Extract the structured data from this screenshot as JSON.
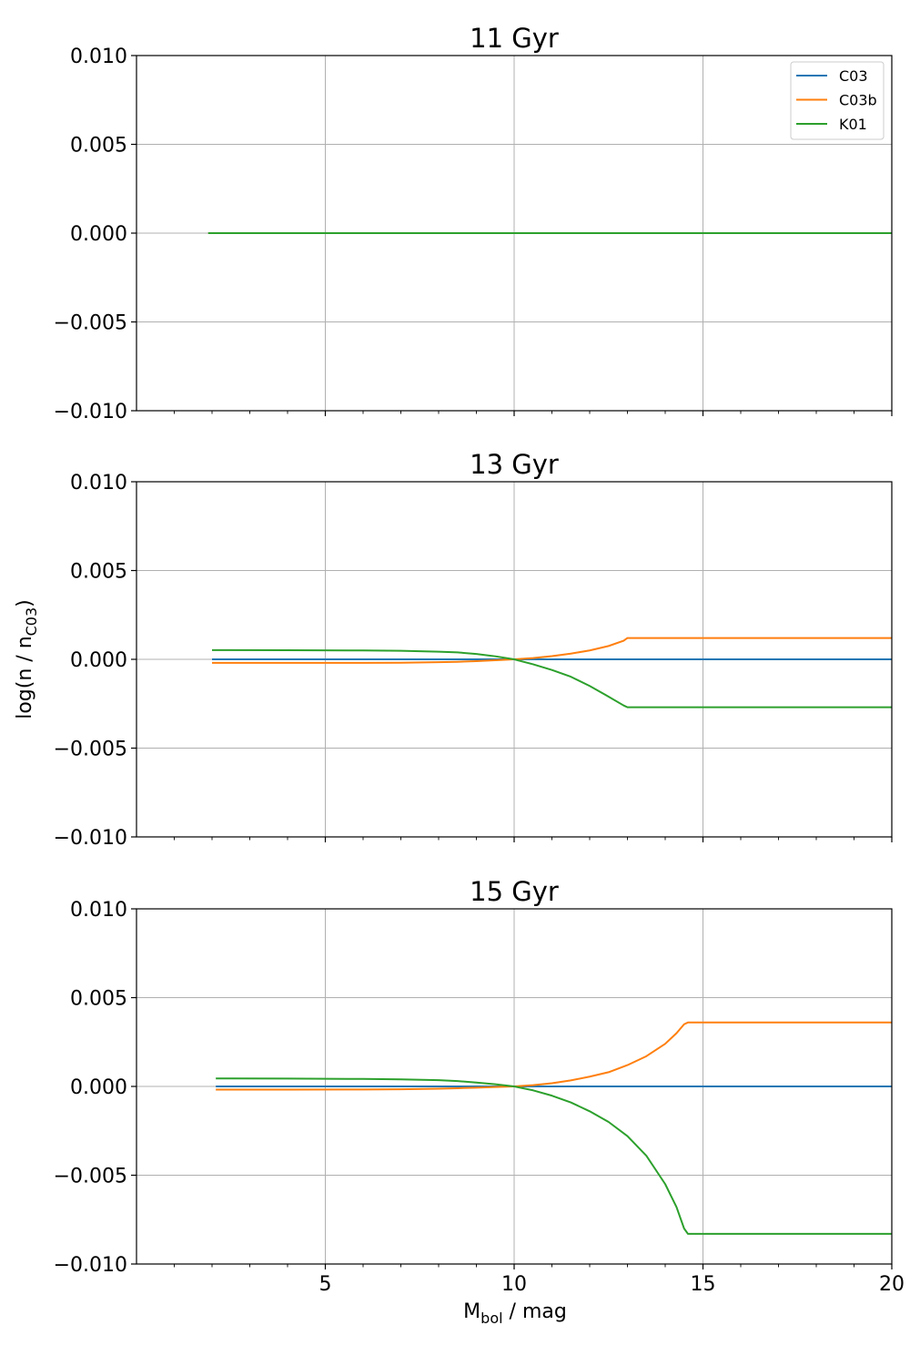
{
  "colors": {
    "C03": "#1f77b4",
    "C03b": "#ff7f0e",
    "K01": "#2ca02c",
    "grid": "#b0b0b0",
    "legend_border": "#cccccc"
  },
  "figure": {
    "xlabel_main": "M",
    "xlabel_sub": "bol",
    "xlabel_rest": " / mag",
    "ylabel_main": "log(n / n",
    "ylabel_sub": "C03",
    "ylabel_rest": ")"
  },
  "chart_data": [
    {
      "type": "line",
      "title": "11 Gyr",
      "xlim": [
        0,
        20
      ],
      "ylim": [
        -0.01,
        0.01
      ],
      "xticks": [
        5,
        10,
        15,
        20
      ],
      "xtick_labels": [
        "5",
        "10",
        "15",
        "20"
      ],
      "yticks": [
        0.01,
        0.005,
        0.0,
        -0.005,
        -0.01
      ],
      "ytick_labels": [
        "0.010",
        "0.005",
        "0.000",
        "−0.005",
        "−0.010"
      ],
      "grid": true,
      "legend": "top-right",
      "series": [
        {
          "name": "C03",
          "color_key": "C03",
          "x": [
            1.9,
            20
          ],
          "y": [
            0,
            0
          ]
        },
        {
          "name": "C03b",
          "color_key": "C03b",
          "x": [
            1.9,
            20
          ],
          "y": [
            0,
            0
          ]
        },
        {
          "name": "K01",
          "color_key": "K01",
          "x": [
            1.9,
            20
          ],
          "y": [
            0,
            0
          ]
        }
      ]
    },
    {
      "type": "line",
      "title": "13 Gyr",
      "xlim": [
        0,
        20
      ],
      "ylim": [
        -0.01,
        0.01
      ],
      "xticks": [
        5,
        10,
        15,
        20
      ],
      "xtick_labels": [
        "5",
        "10",
        "15",
        "20"
      ],
      "yticks": [
        0.01,
        0.005,
        0.0,
        -0.005,
        -0.01
      ],
      "ytick_labels": [
        "0.010",
        "0.005",
        "0.000",
        "−0.005",
        "−0.010"
      ],
      "grid": true,
      "series": [
        {
          "name": "C03",
          "color_key": "C03",
          "x": [
            2.0,
            20
          ],
          "y": [
            0,
            0
          ]
        },
        {
          "name": "C03b",
          "color_key": "C03b",
          "x": [
            2.0,
            4,
            6,
            7,
            8,
            8.5,
            9,
            9.5,
            10,
            10.5,
            11,
            11.5,
            12,
            12.5,
            12.9,
            13.0,
            20
          ],
          "y": [
            -0.0002,
            -0.0002,
            -0.0002,
            -0.00019,
            -0.00016,
            -0.00014,
            -0.0001,
            -5e-05,
            0,
            7e-05,
            0.00018,
            0.00032,
            0.0005,
            0.00075,
            0.00105,
            0.0012,
            0.0012
          ]
        },
        {
          "name": "K01",
          "color_key": "K01",
          "x": [
            2.0,
            4,
            6,
            7,
            8,
            8.5,
            9,
            9.5,
            10,
            10.5,
            11,
            11.5,
            12,
            12.5,
            12.9,
            13.0,
            20
          ],
          "y": [
            0.00052,
            0.00051,
            0.0005,
            0.00048,
            0.00043,
            0.00039,
            0.0003,
            0.00017,
            0,
            -0.00028,
            -0.0006,
            -0.00098,
            -0.0015,
            -0.0021,
            -0.0026,
            -0.0027,
            -0.0027
          ]
        }
      ]
    },
    {
      "type": "line",
      "title": "15 Gyr",
      "xlim": [
        0,
        20
      ],
      "ylim": [
        -0.01,
        0.01
      ],
      "xticks": [
        5,
        10,
        15,
        20
      ],
      "xtick_labels": [
        "5",
        "10",
        "15",
        "20"
      ],
      "yticks": [
        0.01,
        0.005,
        0.0,
        -0.005,
        -0.01
      ],
      "ytick_labels": [
        "0.010",
        "0.005",
        "0.000",
        "−0.005",
        "−0.010"
      ],
      "grid": true,
      "series": [
        {
          "name": "C03",
          "color_key": "C03",
          "x": [
            2.1,
            20
          ],
          "y": [
            0,
            0
          ]
        },
        {
          "name": "C03b",
          "color_key": "C03b",
          "x": [
            2.1,
            4,
            6,
            7,
            8,
            8.5,
            9,
            9.5,
            10,
            10.5,
            11,
            11.5,
            12,
            12.5,
            13,
            13.5,
            14,
            14.3,
            14.5,
            14.6,
            20
          ],
          "y": [
            -0.00018,
            -0.00018,
            -0.00017,
            -0.00016,
            -0.00013,
            -0.0001,
            -7e-05,
            -3e-05,
            0,
            7e-05,
            0.00018,
            0.00034,
            0.00055,
            0.0008,
            0.0012,
            0.0017,
            0.0024,
            0.003,
            0.0035,
            0.0036,
            0.0036
          ]
        },
        {
          "name": "K01",
          "color_key": "K01",
          "x": [
            2.1,
            4,
            6,
            7,
            8,
            8.5,
            9,
            9.5,
            10,
            10.5,
            11,
            11.5,
            12,
            12.5,
            13,
            13.5,
            14,
            14.3,
            14.5,
            14.6,
            20
          ],
          "y": [
            0.00045,
            0.00044,
            0.00042,
            0.0004,
            0.00035,
            0.0003,
            0.00022,
            0.00012,
            0,
            -0.00022,
            -0.00052,
            -0.0009,
            -0.0014,
            -0.002,
            -0.0028,
            -0.0039,
            -0.0055,
            -0.0068,
            -0.008,
            -0.0083,
            -0.0083
          ]
        }
      ]
    }
  ]
}
